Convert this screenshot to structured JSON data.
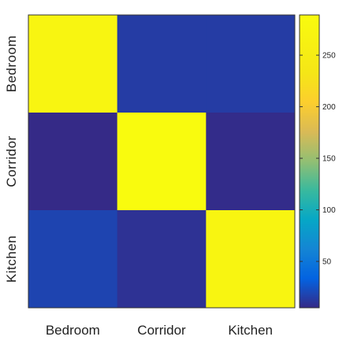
{
  "chart_data": {
    "type": "heatmap",
    "title": "",
    "xlabel": "",
    "ylabel": "",
    "x_categories": [
      "Bedroom",
      "Corridor",
      "Kitchen"
    ],
    "y_categories": [
      "Bedroom",
      "Corridor",
      "Kitchen"
    ],
    "values": [
      [
        272,
        14,
        14
      ],
      [
        5,
        289,
        6
      ],
      [
        18,
        9,
        273
      ]
    ],
    "colorbar": {
      "ticks": [
        50,
        100,
        150,
        200,
        250
      ],
      "range": [
        5,
        289
      ],
      "colormap": "parula",
      "position": "right"
    },
    "grid": false
  }
}
